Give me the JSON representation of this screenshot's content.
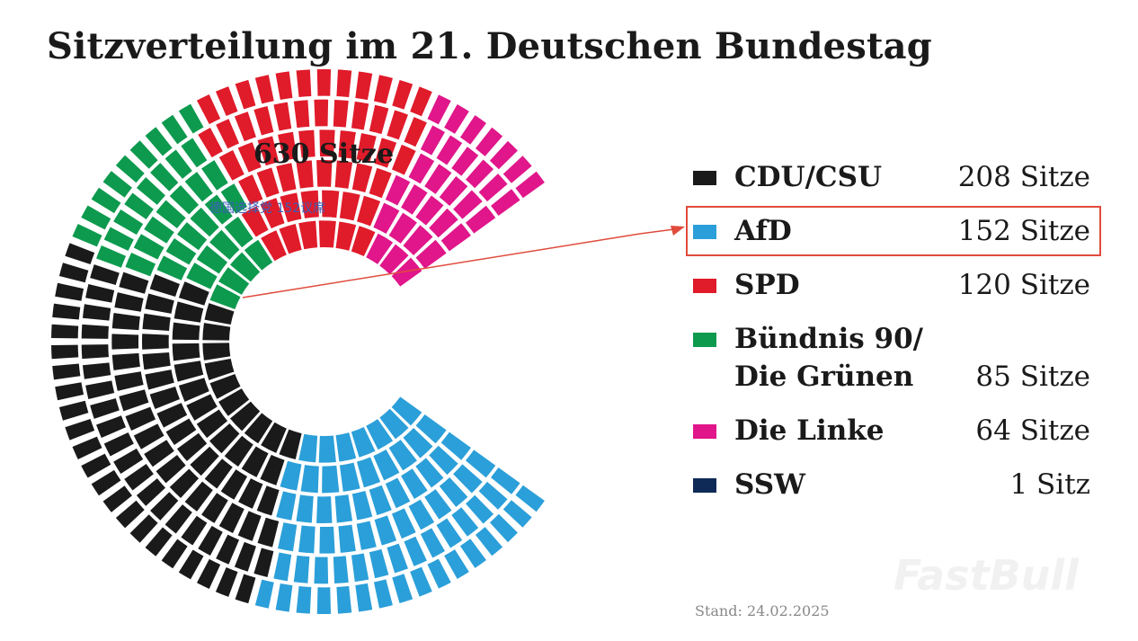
{
  "chart_data": {
    "type": "parliament",
    "title": "Sitzverteilung im 21. Deutschen Bundestag",
    "total_label": "630 Sitze",
    "total": 630,
    "parties": [
      {
        "name": "CDU/CSU",
        "seats": 208,
        "seats_label": "208 Sitze",
        "color": "#1a1a1a"
      },
      {
        "name": "AfD",
        "seats": 152,
        "seats_label": "152 Sitze",
        "color": "#2b9fd9",
        "highlighted": true
      },
      {
        "name": "SPD",
        "seats": 120,
        "seats_label": "120 Sitze",
        "color": "#e01b2a"
      },
      {
        "name": "Bündnis 90/\nDie Grünen",
        "seats": 85,
        "seats_label": "85 Sitze",
        "color": "#0d9a4e"
      },
      {
        "name": "Die Linke",
        "seats": 64,
        "seats_label": "64 Sitze",
        "color": "#e0168a"
      },
      {
        "name": "SSW",
        "seats": 1,
        "seats_label": "1 Sitz",
        "color": "#0f2a57"
      }
    ],
    "annotation": "德国选择党 152议席",
    "stand": "Stand: 24.02.2025",
    "watermark": "FastBull"
  }
}
